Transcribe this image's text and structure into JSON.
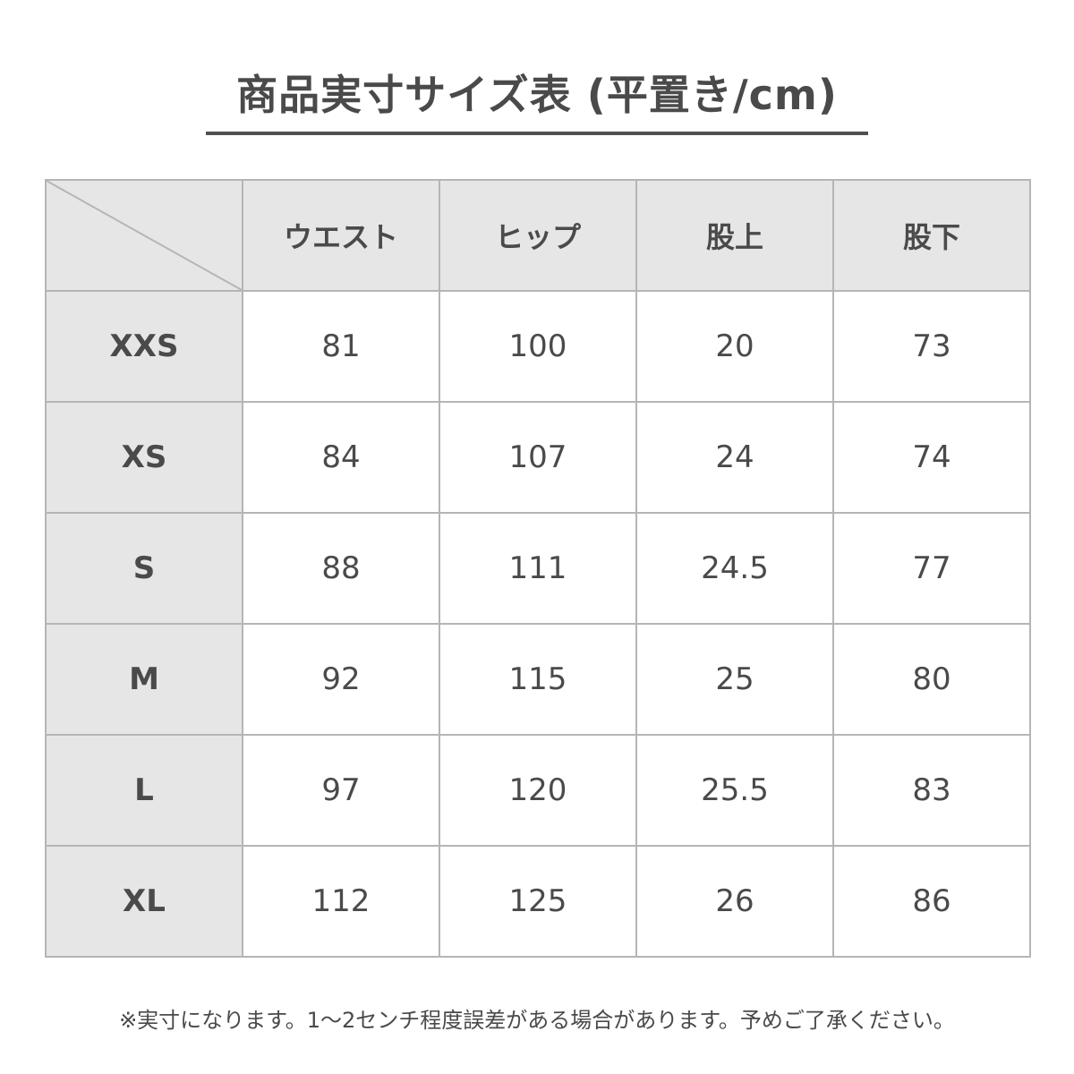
{
  "title": "商品実寸サイズ表 (平置き/cm)",
  "table": {
    "columns": [
      "ウエスト",
      "ヒップ",
      "股上",
      "股下"
    ],
    "rows": [
      {
        "size": "XXS",
        "values": [
          "81",
          "100",
          "20",
          "73"
        ]
      },
      {
        "size": "XS",
        "values": [
          "84",
          "107",
          "24",
          "74"
        ]
      },
      {
        "size": "S",
        "values": [
          "88",
          "111",
          "24.5",
          "77"
        ]
      },
      {
        "size": "M",
        "values": [
          "92",
          "115",
          "25",
          "80"
        ]
      },
      {
        "size": "L",
        "values": [
          "97",
          "120",
          "25.5",
          "83"
        ]
      },
      {
        "size": "XL",
        "values": [
          "112",
          "125",
          "26",
          "86"
        ]
      }
    ]
  },
  "note": "※実寸になります。1～2センチ程度誤差がある場合があります。予めご了承ください。",
  "colors": {
    "text": "#4a4a4a",
    "header_bg": "#e6e6e6",
    "border": "#b5b5b5"
  }
}
